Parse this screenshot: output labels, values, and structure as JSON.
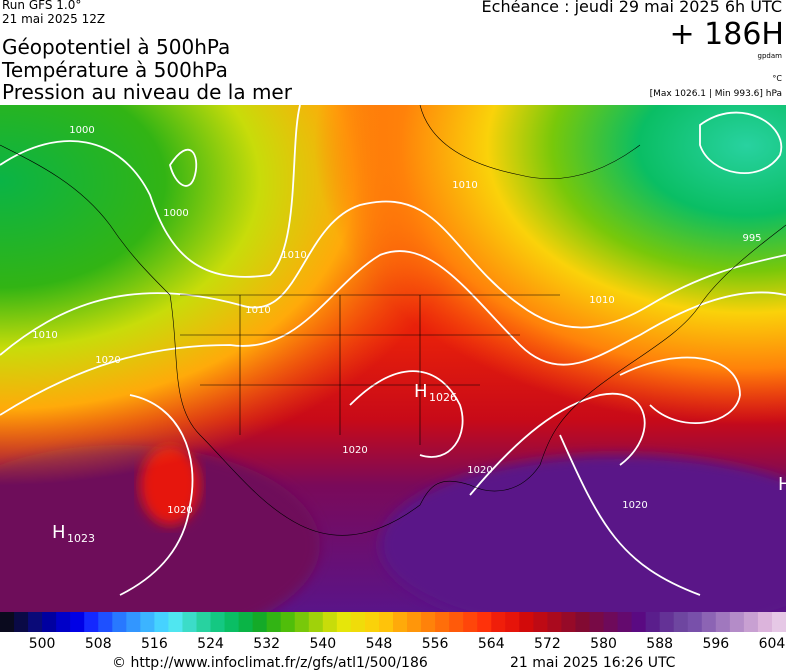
{
  "header": {
    "run": "Run GFS 1.0°",
    "date": "21 mai 2025 12Z",
    "titles": [
      "Géopotentiel à 500hPa",
      "Température à 500hPa",
      "Pression au niveau de la mer"
    ],
    "echeance": "Echéance : jeudi 29 mai 2025 6h UTC",
    "lead": "+ 186H",
    "unit_geo": "gpdam",
    "unit_temp": "°C",
    "range": "[Max 1026.1 | Min 993.6] hPa"
  },
  "map": {
    "isobar_labels": [
      "1000",
      "1000",
      "1010",
      "1010",
      "1010",
      "995",
      "1010",
      "1020",
      "1020",
      "1020",
      "1020",
      "1020",
      "1010"
    ],
    "highs": [
      {
        "letter": "H",
        "value": "1026"
      },
      {
        "letter": "H",
        "value": "1023"
      },
      {
        "letter": "H"
      }
    ]
  },
  "colorbar": {
    "colors": [
      "#0a0a1e",
      "#0a0a46",
      "#0a0a78",
      "#0000a0",
      "#0000c8",
      "#0000e6",
      "#1428ff",
      "#1e50ff",
      "#2878ff",
      "#3296ff",
      "#3cb4ff",
      "#46d2ff",
      "#50e6f0",
      "#3cdcc8",
      "#28d2a0",
      "#14c882",
      "#0abe64",
      "#0ab446",
      "#14aa28",
      "#32b414",
      "#50be0a",
      "#78c80a",
      "#a0d20a",
      "#c8dc0a",
      "#e6e60a",
      "#f0dc0a",
      "#fad20a",
      "#ffc30a",
      "#ffaa0a",
      "#ff960a",
      "#ff820a",
      "#ff6e0a",
      "#ff5a0a",
      "#ff460a",
      "#ff320a",
      "#f01e0a",
      "#e6140a",
      "#d20a0a",
      "#be0a14",
      "#aa0a1e",
      "#960a28",
      "#820a32",
      "#780a46",
      "#6e0a5a",
      "#640a6e",
      "#5a0a82",
      "#5a1e8c",
      "#643296",
      "#6e46a0",
      "#7850aa",
      "#8c64b4",
      "#a078be",
      "#b48cc8",
      "#c8a0d2",
      "#dcb4dc",
      "#e6c8e6"
    ],
    "ticks": [
      500,
      508,
      516,
      524,
      532,
      540,
      548,
      556,
      564,
      572,
      580,
      588,
      596,
      604
    ]
  },
  "footer": {
    "url": "© http://www.infoclimat.fr/z/gfs/atl1/500/186",
    "timestamp": "21 mai 2025 16:26 UTC"
  }
}
